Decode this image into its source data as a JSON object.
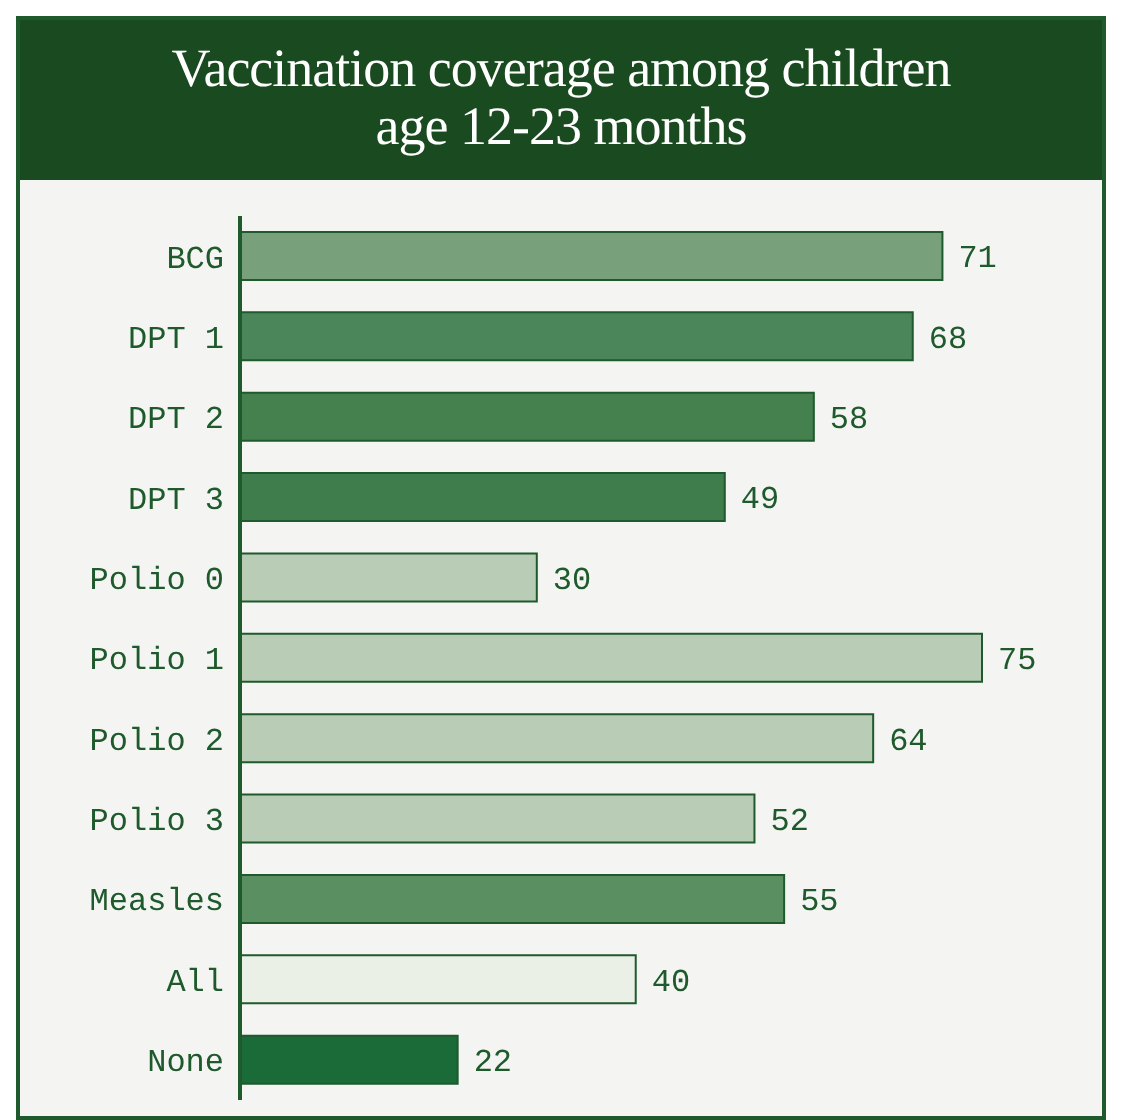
{
  "chart_data": {
    "type": "bar",
    "orientation": "horizontal",
    "title": "Vaccination coverage among children age 12-23 months",
    "categories": [
      "BCG",
      "DPT 1",
      "DPT 2",
      "DPT 3",
      "Polio 0",
      "Polio 1",
      "Polio 2",
      "Polio 3",
      "Measles",
      "All",
      "None"
    ],
    "values": [
      71,
      68,
      58,
      49,
      30,
      75,
      64,
      52,
      55,
      40,
      22
    ],
    "colors": [
      "#78a07a",
      "#4a8659",
      "#44814f",
      "#3f7d4d",
      "#b9ccb6",
      "#b9ccb6",
      "#b9ccb6",
      "#b9ccb6",
      "#5a8f62",
      "#eaf0e6",
      "#1b6b38"
    ],
    "data_labels": true,
    "grid": false,
    "legend": false
  }
}
